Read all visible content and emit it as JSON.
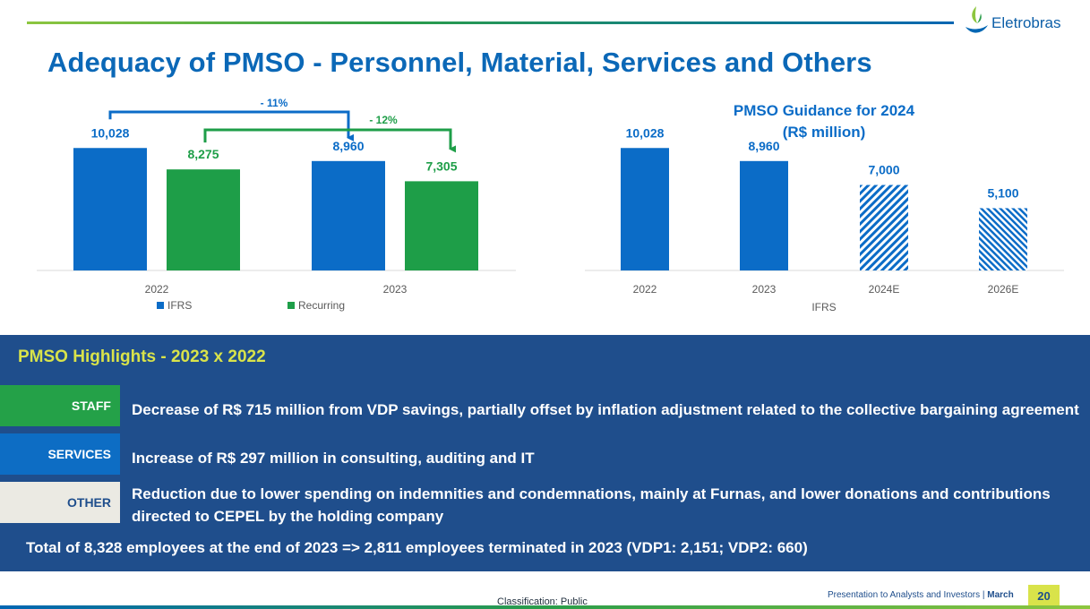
{
  "header": {
    "title": "Adequacy of PMSO - Personnel, Material, Services and Others",
    "logo_text": "Eletrobras"
  },
  "colors": {
    "ifrs": "#0b6cc7",
    "recurring": "#1e9e48",
    "title": "#0b68b7",
    "panel": "#1f4e8c",
    "accent_yellow": "#d9e34a"
  },
  "chart_data": [
    {
      "type": "bar",
      "title": "",
      "categories": [
        "2022",
        "2023"
      ],
      "series": [
        {
          "name": "IFRS",
          "values": [
            10028,
            8960
          ],
          "labels": [
            "10,028",
            "8,960"
          ]
        },
        {
          "name": "Recurring",
          "values": [
            8275,
            7305
          ],
          "labels": [
            "8,275",
            "7,305"
          ]
        }
      ],
      "ylim": [
        0,
        11000
      ],
      "legend": "bottom",
      "annotations": [
        {
          "text": "- 11%",
          "from": "IFRS 2022",
          "to": "IFRS 2023"
        },
        {
          "text": "- 12%",
          "from": "Recurring 2022",
          "to": "Recurring 2023"
        }
      ]
    },
    {
      "type": "bar",
      "title": "PMSO Guidance for 2024",
      "subtitle": "(R$ million)",
      "xlabel": "IFRS",
      "categories": [
        "2022",
        "2023",
        "2024E",
        "2026E"
      ],
      "values": [
        10028,
        8960,
        7000,
        5100
      ],
      "labels": [
        "10,028",
        "8,960",
        "7,000",
        "5,100"
      ],
      "ylim": [
        0,
        11000
      ]
    }
  ],
  "highlights": {
    "title": "PMSO Highlights - 2023 x 2022",
    "rows": [
      {
        "tag": "STAFF",
        "text": "Decrease of R$ 715 million from VDP savings, partially offset by inflation adjustment related to the collective bargaining agreement"
      },
      {
        "tag": "SERVICES",
        "text": "Increase of R$ 297 million in consulting, auditing and IT"
      },
      {
        "tag": "OTHER",
        "text": "Reduction due to lower spending on indemnities and condemnations, mainly at Furnas, and lower donations and contributions directed to CEPEL by the holding company"
      }
    ],
    "total": "Total of 8,328 employees at the end of 2023 => 2,811 employees terminated in 2023 (VDP1: 2,151; VDP2: 660)"
  },
  "footer": {
    "classification": "Classification: Public",
    "presentation": "Presentation to Analysts and Investors |",
    "date": "March",
    "page": "20"
  }
}
